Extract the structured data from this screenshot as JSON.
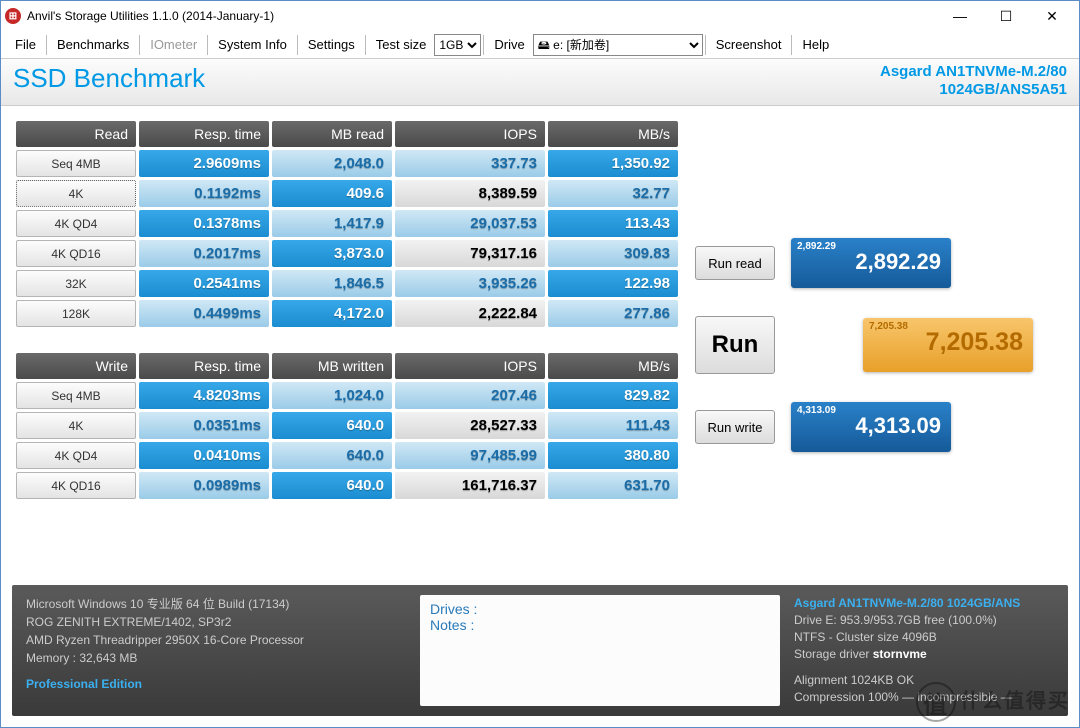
{
  "window": {
    "title": "Anvil's Storage Utilities 1.1.0 (2014-January-1)"
  },
  "menu": {
    "file": "File",
    "benchmarks": "Benchmarks",
    "iometer": "IOmeter",
    "sysinfo": "System Info",
    "settings": "Settings",
    "testsize": "Test size",
    "tsize_val": "1GB",
    "drive": "Drive",
    "drive_val": "🖴 e: [新加卷]",
    "screenshot": "Screenshot",
    "help": "Help"
  },
  "header": {
    "title": "SSD Benchmark",
    "device_line1": "Asgard AN1TNVMe-M.2/80",
    "device_line2": "1024GB/ANS5A51"
  },
  "readTable": {
    "headers": {
      "c0": "Read",
      "c1": "Resp. time",
      "c2": "MB read",
      "c3": "IOPS",
      "c4": "MB/s"
    },
    "rows": [
      {
        "label": "Seq 4MB",
        "resp": "2.9609ms",
        "mb": "2,048.0",
        "iops": "337.73",
        "mbs": "1,350.92"
      },
      {
        "label": "4K",
        "resp": "0.1192ms",
        "mb": "409.6",
        "iops": "8,389.59",
        "mbs": "32.77",
        "sel": true
      },
      {
        "label": "4K QD4",
        "resp": "0.1378ms",
        "mb": "1,417.9",
        "iops": "29,037.53",
        "mbs": "113.43"
      },
      {
        "label": "4K QD16",
        "resp": "0.2017ms",
        "mb": "3,873.0",
        "iops": "79,317.16",
        "mbs": "309.83"
      },
      {
        "label": "32K",
        "resp": "0.2541ms",
        "mb": "1,846.5",
        "iops": "3,935.26",
        "mbs": "122.98"
      },
      {
        "label": "128K",
        "resp": "0.4499ms",
        "mb": "4,172.0",
        "iops": "2,222.84",
        "mbs": "277.86"
      }
    ]
  },
  "writeTable": {
    "headers": {
      "c0": "Write",
      "c1": "Resp. time",
      "c2": "MB written",
      "c3": "IOPS",
      "c4": "MB/s"
    },
    "rows": [
      {
        "label": "Seq 4MB",
        "resp": "4.8203ms",
        "mb": "1,024.0",
        "iops": "207.46",
        "mbs": "829.82"
      },
      {
        "label": "4K",
        "resp": "0.0351ms",
        "mb": "640.0",
        "iops": "28,527.33",
        "mbs": "111.43"
      },
      {
        "label": "4K QD4",
        "resp": "0.0410ms",
        "mb": "640.0",
        "iops": "97,485.99",
        "mbs": "380.80"
      },
      {
        "label": "4K QD16",
        "resp": "0.0989ms",
        "mb": "640.0",
        "iops": "161,716.37",
        "mbs": "631.70"
      }
    ]
  },
  "buttons": {
    "runread": "Run read",
    "run": "Run",
    "runwrite": "Run write"
  },
  "scores": {
    "read": {
      "sm": "2,892.29",
      "lg": "2,892.29"
    },
    "total": {
      "sm": "7,205.38",
      "lg": "7,205.38"
    },
    "write": {
      "sm": "4,313.09",
      "lg": "4,313.09"
    }
  },
  "footer": {
    "os": "Microsoft Windows 10 专业版 64 位 Build (17134)",
    "mobo": "ROG ZENITH EXTREME/1402, SP3r2",
    "cpu": "AMD Ryzen Threadripper 2950X 16-Core Processor",
    "mem": "Memory : 32,643 MB",
    "edition": "Professional Edition",
    "drives_lbl": "Drives :",
    "notes_lbl": "Notes :",
    "dname": "Asgard AN1TNVMe-M.2/80 1024GB/ANS",
    "dfree": "Drive E: 953.9/953.7GB free (100.0%)",
    "dfs": "NTFS - Cluster size 4096B",
    "ddrv_lbl": "Storage driver ",
    "ddrv": "stornvme",
    "align": "Alignment 1024KB OK",
    "comp": "Compression 100% — incompressible —"
  },
  "watermark": "值|什么值得买",
  "colors": {
    "accent": "#0099e5",
    "grad1": "#37a8e8",
    "grad2": "#9acbe8",
    "orange": "#e8a029"
  }
}
